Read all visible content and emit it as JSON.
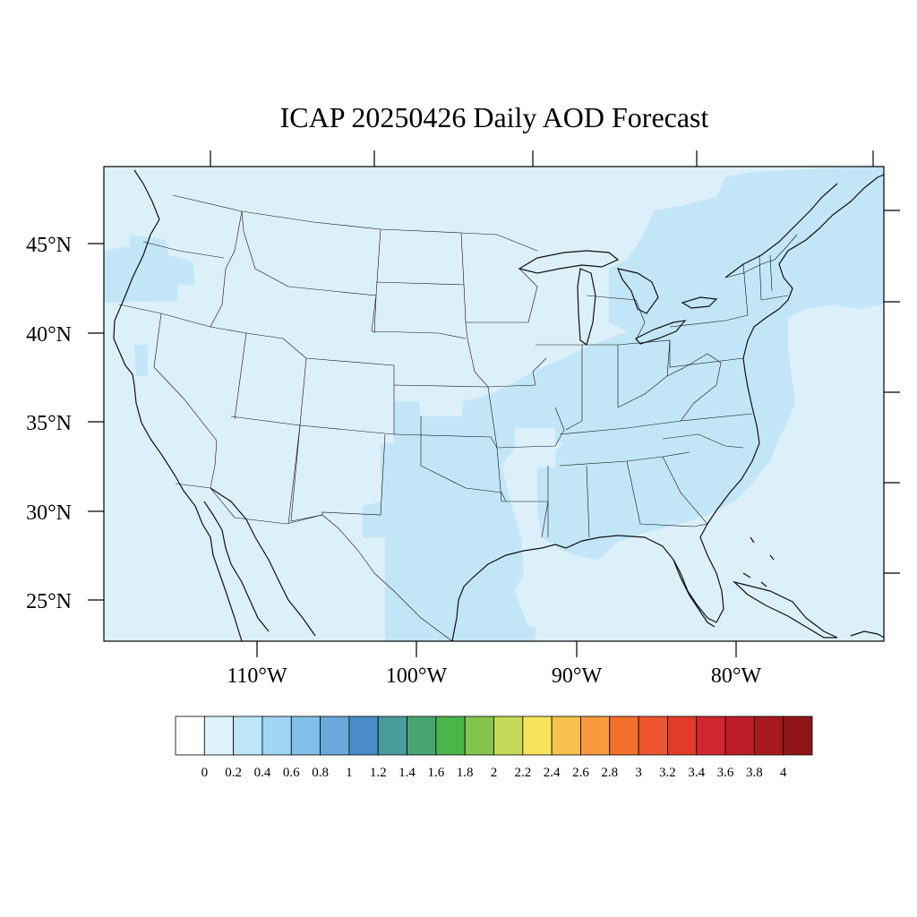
{
  "title": "ICAP 20250426 Daily AOD Forecast",
  "map": {
    "lat_labels": [
      "45°N",
      "40°N",
      "35°N",
      "30°N",
      "25°N"
    ],
    "lon_labels": [
      "110°W",
      "100°W",
      "90°W",
      "80°W"
    ],
    "background_color": "#dcf0fa",
    "shade_color": "#c2e6f8"
  },
  "colorbar": {
    "tick_labels": [
      "0",
      "0.2",
      "0.4",
      "0.6",
      "0.8",
      "1",
      "1.2",
      "1.4",
      "1.6",
      "1.8",
      "2",
      "2.2",
      "2.4",
      "2.6",
      "2.8",
      "3",
      "3.2",
      "3.4",
      "3.6",
      "3.8",
      "4"
    ],
    "colors": [
      "#ffffff",
      "#dff3fc",
      "#bde6f8",
      "#9ed6f4",
      "#80bfe8",
      "#68a8da",
      "#4a8cc8",
      "#4a9c9c",
      "#47a670",
      "#4bb549",
      "#86c54d",
      "#c5d858",
      "#f6e55a",
      "#f8c04c",
      "#f79a3e",
      "#f36f2c",
      "#ed5530",
      "#e33b2a",
      "#d22630",
      "#bf1d2a",
      "#a8181f",
      "#8f1519"
    ]
  }
}
